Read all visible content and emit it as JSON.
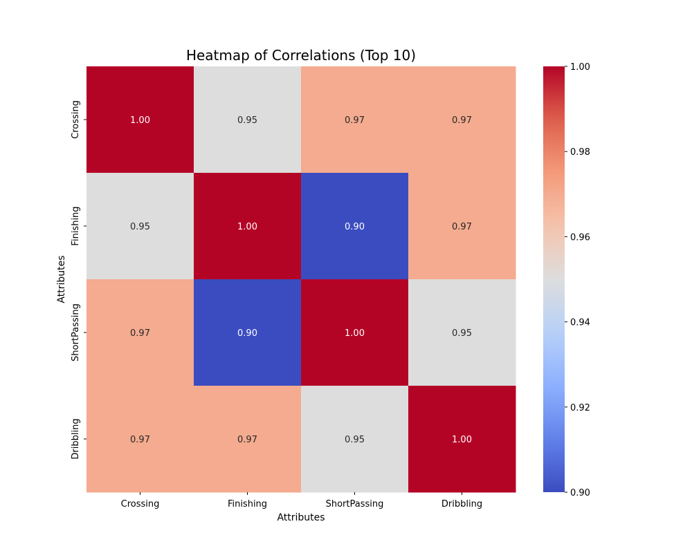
{
  "chart_data": {
    "type": "heatmap",
    "title": "Heatmap of Correlations (Top 10)",
    "xlabel": "Attributes",
    "ylabel": "Attributes",
    "x_categories": [
      "Crossing",
      "Finishing",
      "ShortPassing",
      "Dribbling"
    ],
    "y_categories": [
      "Crossing",
      "Finishing",
      "ShortPassing",
      "Dribbling"
    ],
    "values": [
      [
        1.0,
        0.95,
        0.97,
        0.97
      ],
      [
        0.95,
        1.0,
        0.9,
        0.97
      ],
      [
        0.97,
        0.9,
        1.0,
        0.95
      ],
      [
        0.97,
        0.97,
        0.95,
        1.0
      ]
    ],
    "value_format": "0.00",
    "colormap": "coolwarm",
    "color_range": [
      0.9,
      1.0
    ],
    "colorbar_ticks": [
      "0.90",
      "0.92",
      "0.94",
      "0.96",
      "0.98",
      "1.00"
    ],
    "colorbar_tick_values": [
      0.9,
      0.92,
      0.94,
      0.96,
      0.98,
      1.0
    ],
    "grid": false,
    "colorbar_placement": "right"
  }
}
